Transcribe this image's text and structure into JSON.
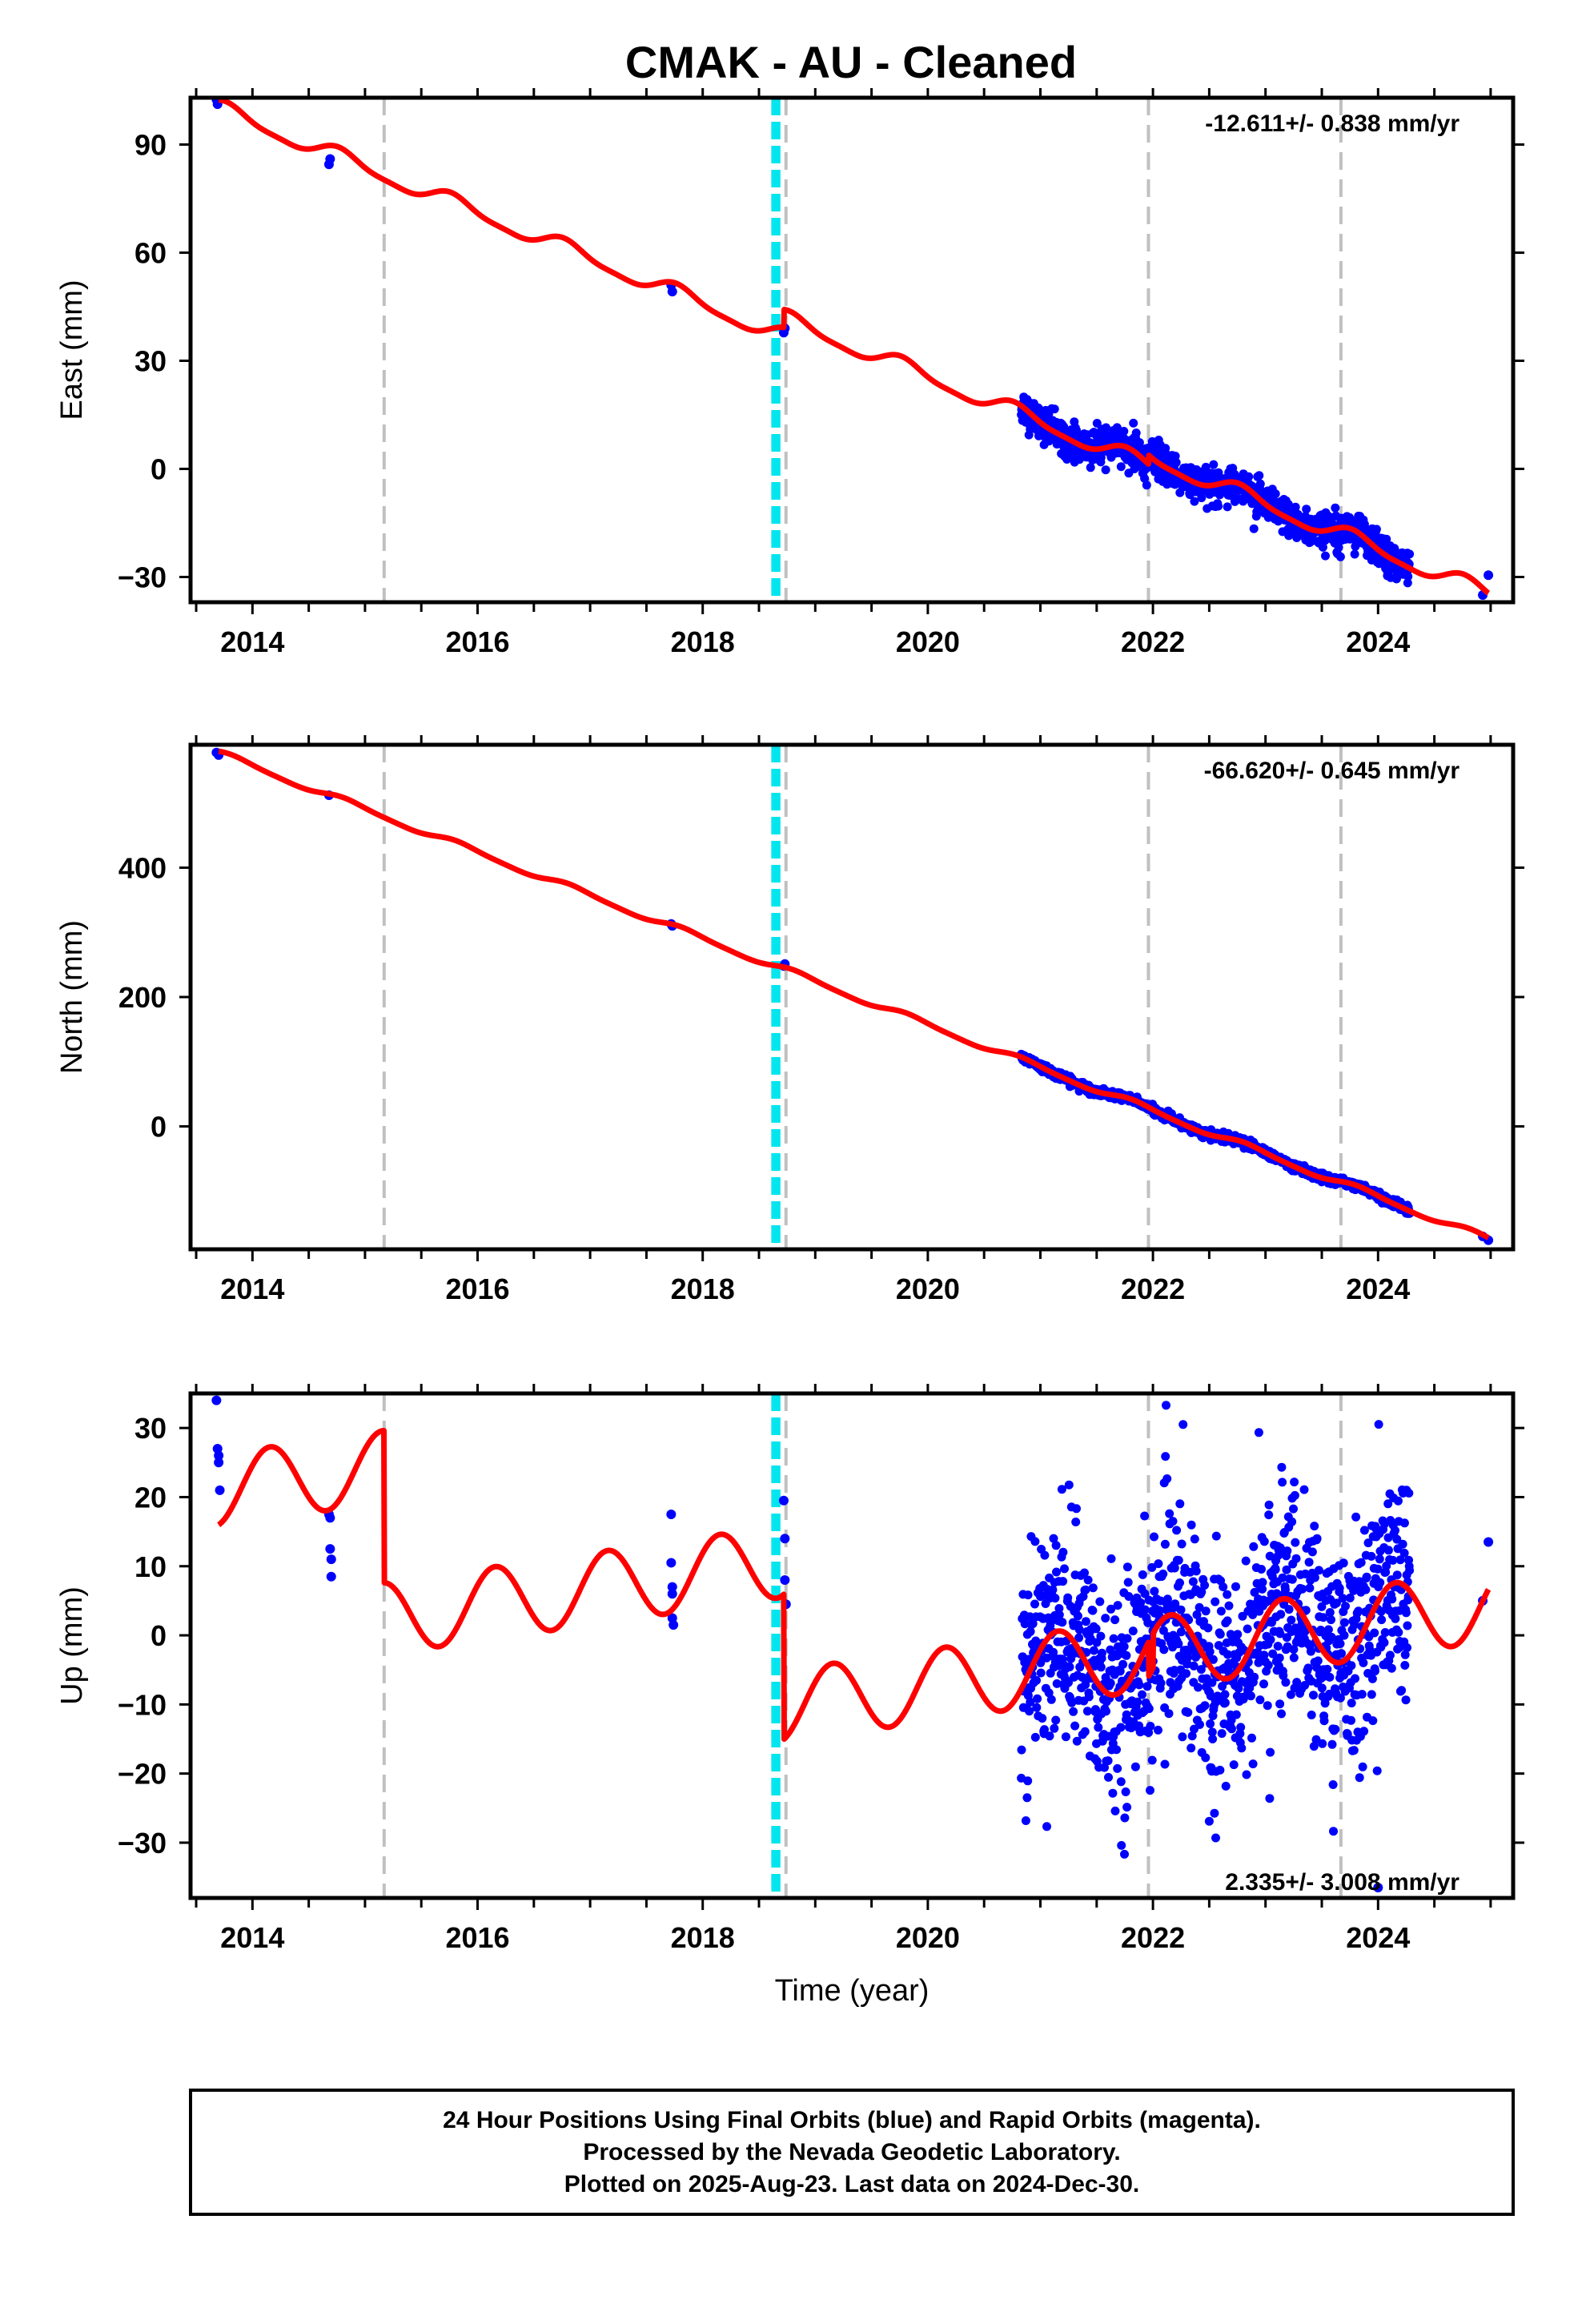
{
  "title": "CMAK  - AU - Cleaned",
  "footer": {
    "line1": "24 Hour Positions Using Final Orbits (blue) and Rapid Orbits (magenta).",
    "line2": "Processed by the Nevada Geodetic Laboratory.",
    "line3": "Plotted on 2025-Aug-23. Last data on 2024-Dec-30."
  },
  "colors": {
    "data_points": "#0000ff",
    "model_line": "#ff0000",
    "equipment_change": "#c0c0c0",
    "earthquake": "#00e5ee"
  },
  "chart_data": [
    {
      "type": "scatter",
      "panel": "east",
      "xlabel": "",
      "ylabel": "East (mm)",
      "rate_text": "-12.611+/- 0.838 mm/yr",
      "xlim": [
        2013.45,
        2025.2
      ],
      "ylim": [
        -37,
        103
      ],
      "xticks": [
        2014,
        2016,
        2018,
        2020,
        2022,
        2024
      ],
      "yticks": [
        -30,
        0,
        30,
        60,
        90
      ],
      "rate": -12.611,
      "offsets": [
        {
          "t": 2018.72,
          "dy": 5
        },
        {
          "t": 2021.96,
          "dy": 2.5
        }
      ],
      "model": {
        "t0": 2013.7,
        "y0": 100,
        "annual_amp": 2.2,
        "semi_amp": 0.6,
        "phase": 1.0,
        "end": 2024.98
      },
      "residual_sd": 2.4,
      "data_points": [
        {
          "t": 2013.68,
          "y": 102.5
        },
        {
          "t": 2013.69,
          "y": 101.2
        },
        {
          "t": 2013.7,
          "y": 103.0
        },
        {
          "t": 2014.68,
          "y": 84.5
        },
        {
          "t": 2014.69,
          "y": 86.0
        },
        {
          "t": 2017.72,
          "y": 51.0
        },
        {
          "t": 2017.73,
          "y": 49.2
        },
        {
          "t": 2018.72,
          "y": 37.8
        },
        {
          "t": 2018.73,
          "y": 39.0
        },
        {
          "t": 2024.93,
          "y": -35.0
        },
        {
          "t": 2024.98,
          "y": -29.5
        }
      ],
      "dense_ranges": [
        [
          2020.83,
          2024.28
        ]
      ]
    },
    {
      "type": "scatter",
      "panel": "north",
      "xlabel": "",
      "ylabel": "North (mm)",
      "rate_text": "-66.620+/- 0.645 mm/yr",
      "xlim": [
        2013.45,
        2025.2
      ],
      "ylim": [
        -190,
        590
      ],
      "xticks": [
        2014,
        2016,
        2018,
        2020,
        2022,
        2024
      ],
      "yticks": [
        0,
        200,
        400
      ],
      "rate": -66.62,
      "offsets": [],
      "model": {
        "t0": 2013.7,
        "y0": 577,
        "annual_amp": 4.5,
        "semi_amp": 1.0,
        "phase": 0.6,
        "end": 2024.98
      },
      "residual_sd": 3.0,
      "data_points": [
        {
          "t": 2013.68,
          "y": 578
        },
        {
          "t": 2013.7,
          "y": 574
        },
        {
          "t": 2014.68,
          "y": 512
        },
        {
          "t": 2017.72,
          "y": 313
        },
        {
          "t": 2017.73,
          "y": 310
        },
        {
          "t": 2018.72,
          "y": 248
        },
        {
          "t": 2018.73,
          "y": 251
        },
        {
          "t": 2024.93,
          "y": -170
        },
        {
          "t": 2024.98,
          "y": -176
        }
      ],
      "dense_ranges": [
        [
          2020.83,
          2024.28
        ]
      ]
    },
    {
      "type": "scatter",
      "panel": "up",
      "xlabel": "Time (year)",
      "ylabel": "Up (mm)",
      "rate_text": "2.335+/- 3.008 mm/yr",
      "xlim": [
        2013.45,
        2025.2
      ],
      "ylim": [
        -38,
        35
      ],
      "xticks": [
        2014,
        2016,
        2018,
        2020,
        2022,
        2024
      ],
      "yticks": [
        -30,
        -20,
        -10,
        0,
        10,
        20,
        30
      ],
      "rate": 2.335,
      "offsets": [
        {
          "t": 2015.17,
          "dy": -22
        },
        {
          "t": 2018.72,
          "dy": -21
        },
        {
          "t": 2021.96,
          "dy": -5
        },
        {
          "t": 2022.0,
          "dy": 5
        }
      ],
      "model": {
        "t0": 2013.7,
        "y0": 21,
        "annual_amp": 5.2,
        "semi_amp": 0.0,
        "phase": -1.3,
        "end": 2024.98
      },
      "residual_sd": 8.0,
      "data_points": [
        {
          "t": 2013.68,
          "y": 34
        },
        {
          "t": 2013.69,
          "y": 27
        },
        {
          "t": 2013.7,
          "y": 26
        },
        {
          "t": 2013.7,
          "y": 25
        },
        {
          "t": 2013.71,
          "y": 21
        },
        {
          "t": 2014.68,
          "y": 17.5
        },
        {
          "t": 2014.69,
          "y": 17
        },
        {
          "t": 2014.69,
          "y": 12.5
        },
        {
          "t": 2014.7,
          "y": 11
        },
        {
          "t": 2014.7,
          "y": 8.5
        },
        {
          "t": 2017.72,
          "y": 17.5
        },
        {
          "t": 2017.72,
          "y": 10.5
        },
        {
          "t": 2017.73,
          "y": 7
        },
        {
          "t": 2017.73,
          "y": 6
        },
        {
          "t": 2017.73,
          "y": 2.5
        },
        {
          "t": 2017.74,
          "y": 1.5
        },
        {
          "t": 2018.72,
          "y": 19.5
        },
        {
          "t": 2018.73,
          "y": 14
        },
        {
          "t": 2018.73,
          "y": 8
        },
        {
          "t": 2018.74,
          "y": 4.5
        },
        {
          "t": 2024.0,
          "y": -36.5
        },
        {
          "t": 2024.93,
          "y": 5
        },
        {
          "t": 2024.98,
          "y": 13.5
        }
      ],
      "dense_ranges": [
        [
          2020.83,
          2024.28
        ]
      ]
    }
  ],
  "equipment_changes": [
    2015.17,
    2018.74,
    2021.96,
    2023.67
  ],
  "earthquakes": [
    2018.62,
    2018.64,
    2018.66,
    2018.68
  ]
}
